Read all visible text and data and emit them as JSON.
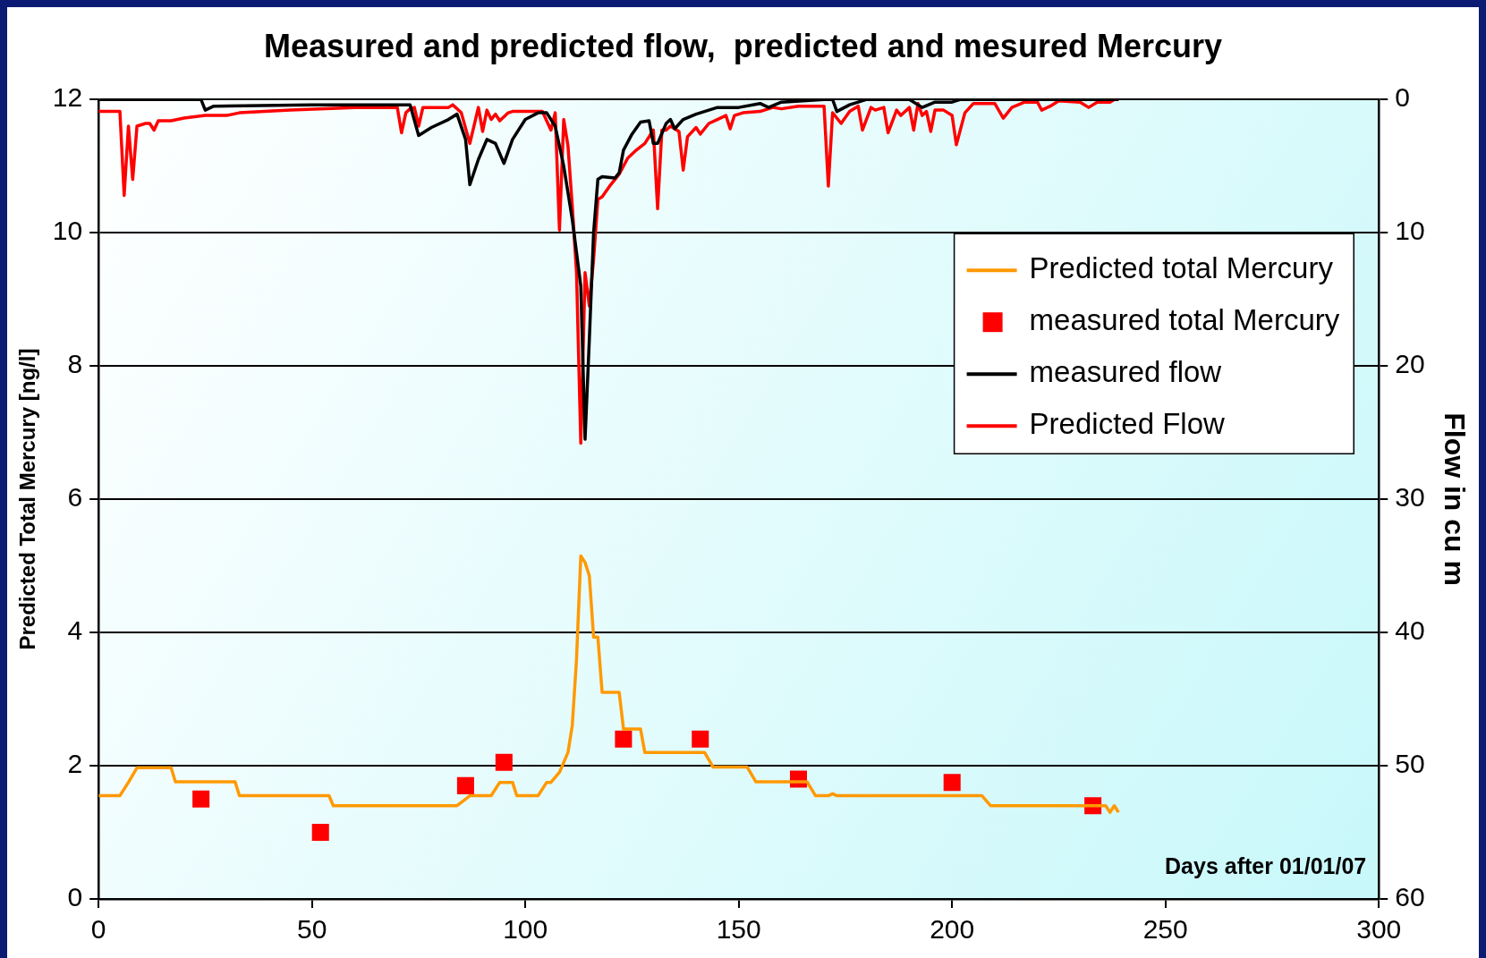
{
  "chart_data": {
    "type": "line",
    "title": "Measured and predicted flow,  predicted and mesured Mercury",
    "xlabel": "Days after 01/01/07",
    "ylabel": "Predicted Total Mercury [ng/l]",
    "y2label": "Flow in cu m",
    "xlim": [
      0,
      300
    ],
    "xticks": [
      0,
      50,
      100,
      150,
      200,
      250,
      300
    ],
    "ylim": [
      0,
      12
    ],
    "yticks": [
      0,
      2,
      4,
      6,
      8,
      10,
      12
    ],
    "y2lim": [
      60,
      0
    ],
    "y2ticks": [
      0,
      10,
      20,
      30,
      40,
      50,
      60
    ],
    "grid": "y",
    "legend": "top right",
    "marker": "none",
    "line_style": "solid",
    "series": [
      {
        "name": "Predicted total Mercury",
        "type": "line",
        "color": "#ff9900",
        "x": [
          0,
          5,
          7,
          9,
          17,
          18,
          32,
          33,
          54,
          55,
          84,
          86,
          87,
          92,
          94,
          97,
          98,
          103,
          105,
          106,
          108,
          110,
          111,
          112,
          113,
          114,
          115,
          116,
          117,
          118,
          122,
          123,
          127,
          128,
          142,
          144,
          152,
          154,
          166,
          168,
          171,
          172,
          173,
          207,
          209,
          236,
          237,
          238,
          239
        ],
        "values": [
          1.55,
          1.55,
          1.75,
          1.97,
          1.97,
          1.76,
          1.76,
          1.55,
          1.55,
          1.4,
          1.4,
          1.5,
          1.55,
          1.55,
          1.75,
          1.75,
          1.55,
          1.55,
          1.75,
          1.75,
          1.9,
          2.2,
          2.6,
          3.6,
          5.15,
          5.05,
          4.85,
          3.93,
          3.93,
          3.1,
          3.1,
          2.55,
          2.55,
          2.2,
          2.2,
          1.98,
          1.98,
          1.76,
          1.76,
          1.55,
          1.55,
          1.58,
          1.55,
          1.55,
          1.4,
          1.4,
          1.3,
          1.4,
          1.3
        ]
      },
      {
        "name": "measured total Mercury",
        "type": "scatter",
        "marker": "square",
        "color": "#ff0000",
        "x": [
          24,
          52,
          86,
          95,
          123,
          141,
          164,
          200,
          233
        ],
        "values": [
          1.5,
          1.0,
          1.7,
          2.05,
          2.4,
          2.4,
          1.8,
          1.75,
          1.4
        ]
      },
      {
        "name": "measured flow",
        "type": "line",
        "axis": "y2",
        "color": "#000000",
        "x": [
          0,
          24,
          25,
          27,
          50,
          73,
          75,
          78,
          82,
          84,
          86,
          87,
          89,
          91,
          93,
          95,
          97,
          100,
          103,
          105,
          107,
          109,
          111,
          113,
          114,
          115,
          116,
          117,
          118,
          121,
          122,
          123,
          125,
          127,
          129,
          130,
          131,
          133,
          134,
          135,
          137,
          140,
          145,
          150,
          155,
          157,
          160,
          170,
          172,
          173,
          176,
          180,
          190,
          193,
          196,
          200,
          202,
          239
        ],
        "values": [
          0,
          0,
          0.8,
          0.5,
          0.4,
          0.4,
          2.7,
          2.1,
          1.5,
          1.1,
          3,
          6.4,
          4.5,
          3,
          3.3,
          4.8,
          3,
          1.5,
          1,
          1,
          2,
          5,
          9,
          14,
          25.5,
          18,
          10,
          6,
          5.8,
          5.9,
          5.5,
          3.8,
          2.6,
          1.7,
          1.6,
          3.3,
          3.3,
          1.8,
          1.5,
          2.2,
          1.5,
          1.1,
          0.6,
          0.6,
          0.3,
          0.6,
          0.2,
          0,
          0,
          0.9,
          0.4,
          0,
          0,
          0.6,
          0.2,
          0.2,
          0,
          0
        ]
      },
      {
        "name": "Predicted Flow",
        "type": "line",
        "axis": "y2",
        "color": "#ff0000",
        "x": [
          0,
          5,
          6,
          7,
          8,
          9,
          11,
          12,
          13,
          14,
          17,
          20,
          25,
          30,
          33,
          45,
          60,
          70,
          71,
          72,
          73,
          74,
          75,
          76,
          82,
          83,
          85,
          87,
          89,
          90,
          91,
          92,
          93,
          94,
          96,
          97,
          104,
          105,
          106,
          107,
          108,
          109,
          110,
          111,
          112,
          113,
          114,
          115,
          116,
          117,
          118,
          120,
          122,
          124,
          126,
          128,
          130,
          131,
          132,
          133,
          134,
          136,
          137,
          138,
          140,
          141,
          143,
          145,
          147,
          148,
          149,
          151,
          155,
          158,
          160,
          164,
          170,
          171,
          172,
          174,
          176,
          178,
          179,
          181,
          182,
          184,
          185,
          187,
          188,
          190,
          191,
          192,
          193,
          194,
          195,
          196,
          198,
          200,
          201,
          203,
          205,
          210,
          212,
          214,
          217,
          220,
          221,
          223,
          225,
          230,
          232,
          234,
          237,
          238,
          239
        ],
        "values": [
          0.9,
          0.9,
          7.2,
          2,
          6,
          2,
          1.8,
          1.8,
          2.3,
          1.6,
          1.6,
          1.4,
          1.2,
          1.2,
          1,
          0.8,
          0.6,
          0.6,
          2.5,
          1,
          0.7,
          0.6,
          2,
          0.6,
          0.6,
          0.4,
          1,
          3.3,
          0.6,
          2.4,
          0.8,
          1.5,
          1.1,
          1.6,
          1,
          0.9,
          0.9,
          1.6,
          2.3,
          1,
          9.8,
          1.5,
          3.5,
          8,
          13,
          25.8,
          13,
          15.5,
          12,
          7.5,
          7.3,
          6.4,
          5.6,
          4.4,
          3.8,
          3.3,
          2.3,
          8.2,
          2.3,
          2.3,
          2,
          2.4,
          5.3,
          2.8,
          2.1,
          2.6,
          1.8,
          1.5,
          1.2,
          2.2,
          1.2,
          1,
          0.9,
          0.6,
          0.7,
          0.5,
          0.5,
          6.5,
          1,
          1.8,
          0.9,
          0.5,
          2.3,
          0.6,
          0.8,
          0.6,
          2.5,
          0.8,
          1.2,
          0.6,
          2.3,
          0.3,
          1.2,
          0.9,
          2.4,
          0.8,
          0.8,
          1.2,
          3.4,
          1,
          0.3,
          0.3,
          1.4,
          0.6,
          0.2,
          0.2,
          0.8,
          0.5,
          0.1,
          0.2,
          0.6,
          0.2,
          0.2,
          0,
          0
        ]
      }
    ]
  }
}
